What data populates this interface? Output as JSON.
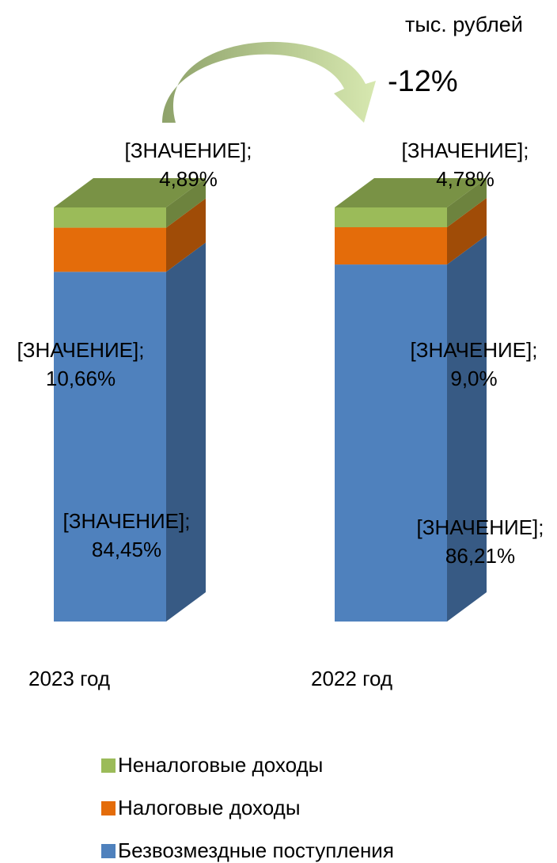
{
  "chart_data": {
    "type": "stacked_bar_3d",
    "unit_label": "тыс. рублей",
    "annotation": "-12%",
    "categories": [
      "2023 год",
      "2022 год"
    ],
    "series": [
      {
        "name": "Безвозмездные поступления",
        "color": "#4f81bd",
        "values": [
          84.45,
          86.21
        ],
        "value_labels": [
          "[ЗНАЧЕНИЕ]; 84,45%",
          "[ЗНАЧЕНИЕ]; 86,21%"
        ]
      },
      {
        "name": "Налоговые доходы",
        "color": "#e46c0a",
        "values": [
          10.66,
          9.0
        ],
        "value_labels": [
          "[ЗНАЧЕНИЕ]; 10,66%",
          "[ЗНАЧЕНИЕ]; 9,0%"
        ]
      },
      {
        "name": "Неналоговые доходы",
        "color": "#9bbb59",
        "values": [
          4.89,
          4.78
        ],
        "value_labels": [
          "[ЗНАЧЕНИЕ]; 4,89%",
          "[ЗНАЧЕНИЕ]; 4,78%"
        ]
      }
    ],
    "legend": "bottom"
  }
}
